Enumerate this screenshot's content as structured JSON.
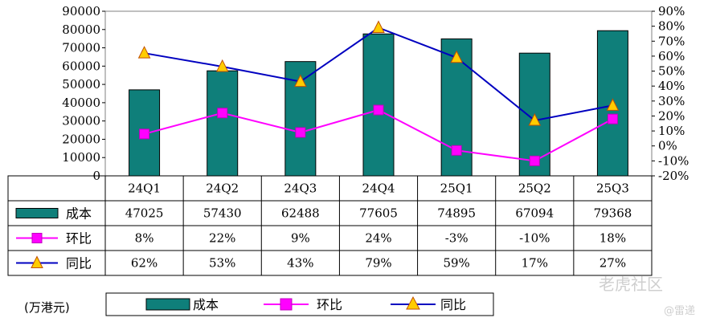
{
  "unit_label": "(万港元)",
  "watermark": "老虎社区",
  "watermark_author": "@雷递",
  "colors": {
    "bar": "#0f7f7a",
    "mom": "#ff00ff",
    "yoy": "#0000c0",
    "marker_yoy": "#ffcc00"
  },
  "chart_data": {
    "type": "bar",
    "title": "",
    "categories": [
      "24Q1",
      "24Q2",
      "24Q3",
      "24Q4",
      "25Q1",
      "25Q2",
      "25Q3"
    ],
    "ylim_left": [
      0,
      90000
    ],
    "yticks_left": [
      "0",
      "10000",
      "20000",
      "30000",
      "40000",
      "50000",
      "60000",
      "70000",
      "80000",
      "90000"
    ],
    "ylim_right": [
      -20,
      90
    ],
    "yticks_right": [
      "-20%",
      "-10%",
      "0%",
      "10%",
      "20%",
      "30%",
      "40%",
      "50%",
      "60%",
      "70%",
      "80%",
      "90%"
    ],
    "series": [
      {
        "name": "成本",
        "type": "bar",
        "axis": "left",
        "values": [
          47025,
          57430,
          62488,
          77605,
          74895,
          67094,
          79368
        ],
        "labels": [
          "47025",
          "57430",
          "62488",
          "77605",
          "74895",
          "67094",
          "79368"
        ]
      },
      {
        "name": "环比",
        "type": "line",
        "axis": "right",
        "marker": "square",
        "values": [
          8,
          22,
          9,
          24,
          -3,
          -10,
          18
        ],
        "labels": [
          "8%",
          "22%",
          "9%",
          "24%",
          "-3%",
          "-10%",
          "18%"
        ]
      },
      {
        "name": "同比",
        "type": "line",
        "axis": "right",
        "marker": "triangle",
        "values": [
          62,
          53,
          43,
          79,
          59,
          17,
          27
        ],
        "labels": [
          "62%",
          "53%",
          "43%",
          "79%",
          "59%",
          "17%",
          "27%"
        ]
      }
    ],
    "legend": [
      "成本",
      "环比",
      "同比"
    ],
    "legend_position": "bottom"
  }
}
